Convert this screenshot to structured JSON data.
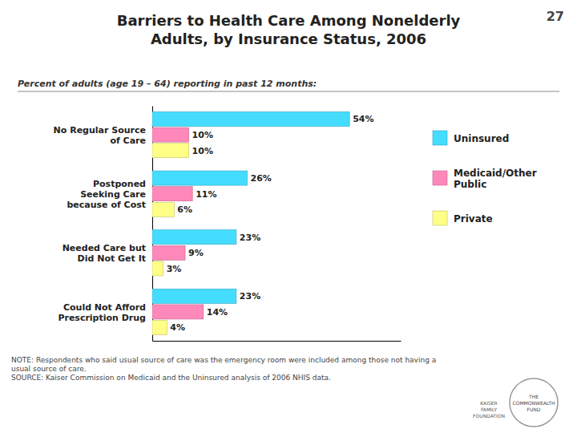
{
  "chart_data": {
    "type": "bar",
    "orientation": "horizontal",
    "title": "Barriers to Health Care Among Nonelderly\nAdults, by Insurance Status, 2006",
    "subtitle": "Percent of adults (age 19 – 64) reporting in past 12 months:",
    "annotations": [
      "27",
      "NOTE: Respondents who said usual source of care was the emergency room were included among those not having a\nusual source of care.\nSOURCE: Kaiser Commission on Medicaid and the Uninsured analysis of 2006 NHIS data.",
      "THE\nCOMMONWEALTH\nFUND",
      "KAISER\nFAMILY\nFOUNDATION"
    ],
    "categories": [
      "No Regular Source\nof Care",
      "Postponed\nSeeking Care\nbecause of Cost",
      "Needed Care but\nDid Not Get It",
      "Could Not Afford\nPrescription Drug"
    ],
    "series": [
      {
        "name": "Uninsured",
        "color": "#44DDFF",
        "values": [
          54,
          26,
          23,
          23
        ],
        "value_labels": [
          "54%",
          "26%",
          "23%",
          "23%"
        ]
      },
      {
        "name": "Medicaid/Other\nPublic",
        "color": "#FF88BB",
        "values": [
          10,
          11,
          9,
          14
        ],
        "value_labels": [
          "10%",
          "11%",
          "9%",
          "14%"
        ]
      },
      {
        "name": "Private",
        "color": "#FFFF88",
        "values": [
          10,
          6,
          3,
          4
        ],
        "value_labels": [
          "10%",
          "6%",
          "3%",
          "4%"
        ]
      }
    ],
    "xlim": [
      0,
      68
    ],
    "data_labels": true,
    "tick_labels": "y",
    "grid": false,
    "legend": "right"
  }
}
